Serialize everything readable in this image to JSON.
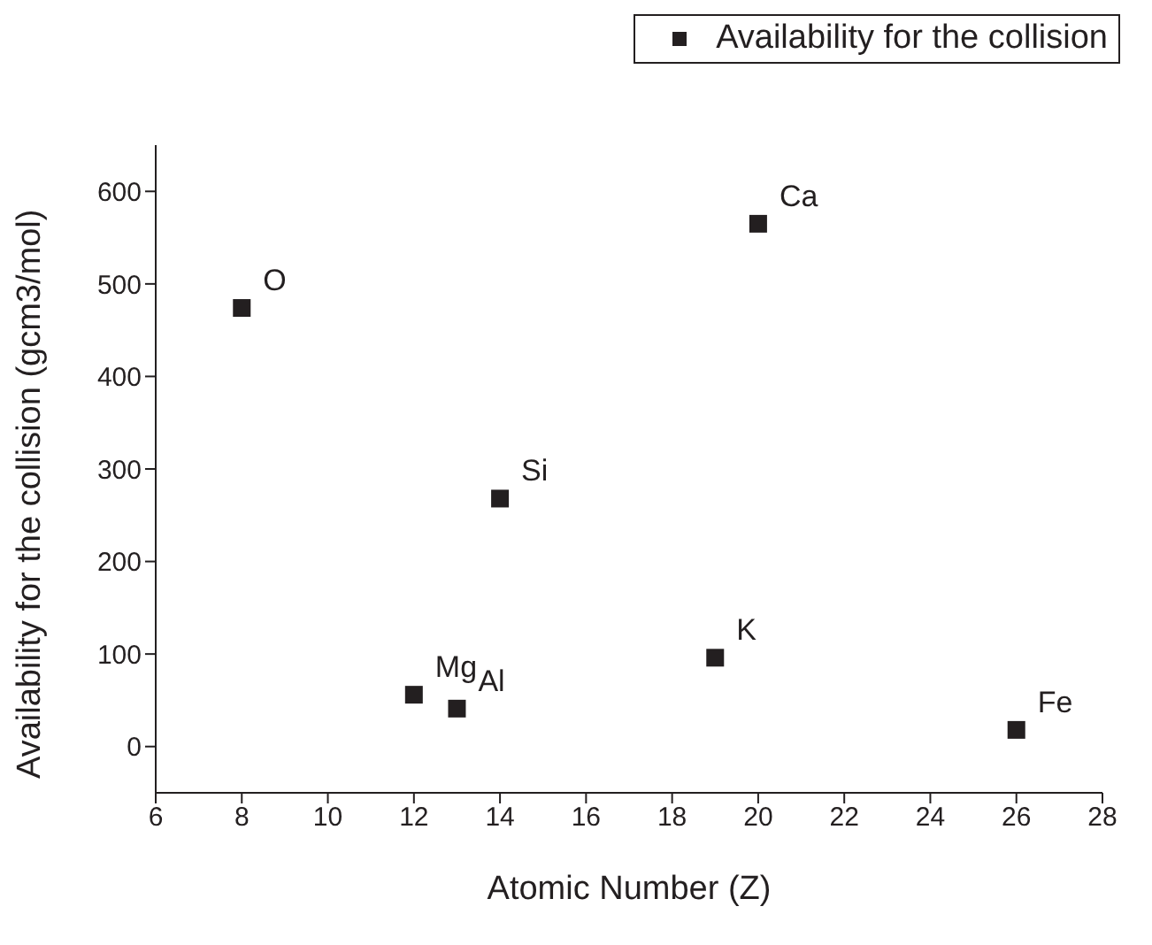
{
  "chart_data": {
    "type": "scatter",
    "xlabel": "Atomic Number (Z)",
    "ylabel": "Availability for the collision (gcm3/mol)",
    "x": [
      8,
      12,
      13,
      14,
      19,
      20,
      26
    ],
    "series": [
      {
        "name": "Availability for the collision",
        "color": "#231f20",
        "values": [
          474,
          56,
          41,
          268,
          96,
          565,
          18
        ]
      }
    ],
    "xlim": [
      6,
      28
    ],
    "xticks": [
      6,
      8,
      10,
      12,
      14,
      16,
      18,
      20,
      22,
      24,
      26,
      28
    ],
    "ylim": [
      -50,
      650
    ],
    "yticks": [
      0,
      100,
      200,
      300,
      400,
      500,
      600
    ],
    "annotations": [
      {
        "text": "O",
        "x": 8,
        "y": 474
      },
      {
        "text": "Mg",
        "x": 12,
        "y": 56
      },
      {
        "text": "Al",
        "x": 13,
        "y": 41
      },
      {
        "text": "Si",
        "x": 14,
        "y": 268
      },
      {
        "text": "K",
        "x": 19,
        "y": 96
      },
      {
        "text": "Ca",
        "x": 20,
        "y": 565
      },
      {
        "text": "Fe",
        "x": 26,
        "y": 18
      }
    ],
    "marker": "square",
    "grid": false,
    "legend": "top right"
  }
}
